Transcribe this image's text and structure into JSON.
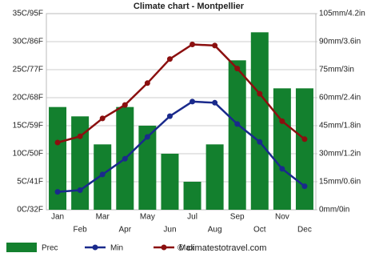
{
  "chart_data": {
    "type": "bar_line",
    "title": "Climate chart - Montpellier",
    "categories": [
      "Jan",
      "Feb",
      "Mar",
      "Apr",
      "May",
      "Jun",
      "Jul",
      "Aug",
      "Sep",
      "Oct",
      "Nov",
      "Dec"
    ],
    "series": [
      {
        "name": "Prec",
        "type": "bar",
        "axis": "y2",
        "color": "#13802e",
        "values": [
          55,
          50,
          35,
          55,
          45,
          30,
          15,
          35,
          80,
          95,
          65,
          65
        ]
      },
      {
        "name": "Min",
        "type": "line",
        "color": "#1a2a8c",
        "values": [
          3.2,
          3.5,
          6.3,
          9.1,
          13,
          16.7,
          19.3,
          19.1,
          15.3,
          12.1,
          7.3,
          4.2
        ]
      },
      {
        "name": "Max",
        "type": "line",
        "color": "#8b0f0f",
        "values": [
          12,
          13.1,
          16.3,
          18.7,
          22.6,
          26.9,
          29.5,
          29.3,
          25.2,
          20.7,
          15.8,
          12.6
        ]
      }
    ],
    "ylim": [
      0,
      35
    ],
    "yticks": [
      {
        "value": 0,
        "label": "0C/32F"
      },
      {
        "value": 5,
        "label": "5C/41F"
      },
      {
        "value": 10,
        "label": "10C/50F"
      },
      {
        "value": 15,
        "label": "15C/59F"
      },
      {
        "value": 20,
        "label": "20C/68F"
      },
      {
        "value": 25,
        "label": "25C/77F"
      },
      {
        "value": 30,
        "label": "30C/86F"
      },
      {
        "value": 35,
        "label": "35C/95F"
      }
    ],
    "y2lim": [
      0,
      105
    ],
    "y2ticks": [
      {
        "value": 0,
        "label": "0mm/0in"
      },
      {
        "value": 15,
        "label": "15mm/0.6in"
      },
      {
        "value": 30,
        "label": "30mm/1.2in"
      },
      {
        "value": 45,
        "label": "45mm/1.8in"
      },
      {
        "value": 60,
        "label": "60mm/2.4in"
      },
      {
        "value": 75,
        "label": "75mm/3in"
      },
      {
        "value": 90,
        "label": "90mm/3.6in"
      },
      {
        "value": 105,
        "label": "105mm/4.2in"
      }
    ],
    "y2color": "#13802e",
    "grid": true,
    "credit": "© climatestotravel.com"
  }
}
